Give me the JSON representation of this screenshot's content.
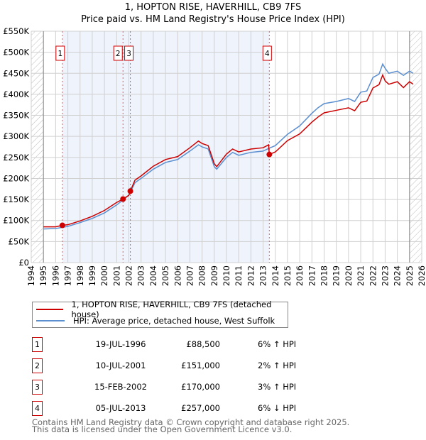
{
  "chart_data": {
    "type": "line",
    "title": "1, HOPTON RISE, HAVERHILL, CB9 7FS",
    "subtitle": "Price paid vs. HM Land Registry's House Price Index (HPI)",
    "xlim": [
      1994,
      2026
    ],
    "ylim": [
      0,
      550000
    ],
    "x_ticks": [
      "1994",
      "1995",
      "1996",
      "1997",
      "1998",
      "1999",
      "2000",
      "2001",
      "2002",
      "2003",
      "2004",
      "2005",
      "2006",
      "2007",
      "2008",
      "2009",
      "2010",
      "2011",
      "2012",
      "2013",
      "2014",
      "2015",
      "2016",
      "2017",
      "2018",
      "2019",
      "2020",
      "2021",
      "2022",
      "2023",
      "2024",
      "2025",
      "2026"
    ],
    "y_ticks": [
      {
        "v": 0,
        "l": "£0"
      },
      {
        "v": 50000,
        "l": "£50K"
      },
      {
        "v": 100000,
        "l": "£100K"
      },
      {
        "v": 150000,
        "l": "£150K"
      },
      {
        "v": 200000,
        "l": "£200K"
      },
      {
        "v": 250000,
        "l": "£250K"
      },
      {
        "v": 300000,
        "l": "£300K"
      },
      {
        "v": 350000,
        "l": "£350K"
      },
      {
        "v": 400000,
        "l": "£400K"
      },
      {
        "v": 450000,
        "l": "£450K"
      },
      {
        "v": 500000,
        "l": "£500K"
      },
      {
        "v": 550000,
        "l": "£550K"
      }
    ],
    "grid": true,
    "shaded_period": [
      1996.55,
      2013.51
    ],
    "hatched_ranges": [
      [
        1994,
        1995
      ],
      [
        2025,
        2026
      ]
    ],
    "series": [
      {
        "name": "1, HOPTON RISE, HAVERHILL, CB9 7FS (detached house)",
        "color": "#cc0000",
        "x": [
          1995,
          1996,
          1996.55,
          1997,
          1998,
          1999,
          2000,
          2001,
          2001.52,
          2002,
          2002.12,
          2002.5,
          2003,
          2004,
          2005,
          2006,
          2007,
          2007.7,
          2008,
          2008.5,
          2009,
          2009.2,
          2010,
          2010.5,
          2011,
          2012,
          2013,
          2013.45,
          2013.51,
          2014,
          2015,
          2016,
          2017,
          2017.5,
          2018,
          2019,
          2020,
          2020.5,
          2021,
          2021.5,
          2022,
          2022.5,
          2022.8,
          2023,
          2023.3,
          2024,
          2024.5,
          2025,
          2025.3
        ],
        "y": [
          85000,
          85000,
          88500,
          90000,
          99000,
          110000,
          124000,
          143000,
          151000,
          160000,
          170000,
          196000,
          206000,
          229000,
          245000,
          252000,
          273000,
          289000,
          283000,
          278000,
          235000,
          228000,
          258000,
          270000,
          263000,
          270000,
          273000,
          280000,
          257000,
          263000,
          290000,
          306000,
          334000,
          346000,
          356000,
          362000,
          368000,
          361000,
          381000,
          384000,
          415000,
          423000,
          446000,
          432000,
          424000,
          430000,
          416000,
          430000,
          424000
        ]
      },
      {
        "name": "HPI: Average price, detached house, West Suffolk",
        "color": "#5b8fd0",
        "x": [
          1995,
          1996,
          1997,
          1998,
          1999,
          2000,
          2001,
          2002,
          2002.5,
          2003,
          2004,
          2005,
          2006,
          2007,
          2007.7,
          2008,
          2008.5,
          2009,
          2009.2,
          2010,
          2010.5,
          2011,
          2012,
          2013,
          2013.5,
          2014,
          2015,
          2016,
          2017,
          2017.5,
          2018,
          2019,
          2020,
          2020.5,
          2021,
          2021.5,
          2022,
          2022.5,
          2022.8,
          2023,
          2023.3,
          2024,
          2024.5,
          2025,
          2025.3
        ],
        "y": [
          80000,
          81000,
          86000,
          95000,
          105000,
          118000,
          137000,
          160000,
          190000,
          200000,
          222000,
          238000,
          245000,
          265000,
          280000,
          275000,
          270000,
          228000,
          222000,
          250000,
          262000,
          255000,
          262000,
          265000,
          272000,
          278000,
          305000,
          325000,
          355000,
          368000,
          378000,
          383000,
          390000,
          383000,
          405000,
          408000,
          440000,
          448000,
          472000,
          462000,
          450000,
          455000,
          445000,
          455000,
          450000
        ]
      }
    ],
    "sales": [
      {
        "n": "1",
        "date": "19-JUL-1996",
        "x": 1996.55,
        "price": 88500,
        "price_label": "£88,500",
        "hpi": "6% ↑ HPI"
      },
      {
        "n": "2",
        "date": "10-JUL-2001",
        "x": 2001.52,
        "price": 151000,
        "price_label": "£151,000",
        "hpi": "2% ↑ HPI"
      },
      {
        "n": "3",
        "date": "15-FEB-2002",
        "x": 2002.12,
        "price": 170000,
        "price_label": "£170,000",
        "hpi": "3% ↑ HPI"
      },
      {
        "n": "4",
        "date": "05-JUL-2013",
        "x": 2013.51,
        "price": 257000,
        "price_label": "£257,000",
        "hpi": "6% ↓ HPI"
      }
    ]
  },
  "footer": {
    "line1": "Contains HM Land Registry data © Crown copyright and database right 2025.",
    "line2": "This data is licensed under the Open Government Licence v3.0."
  }
}
